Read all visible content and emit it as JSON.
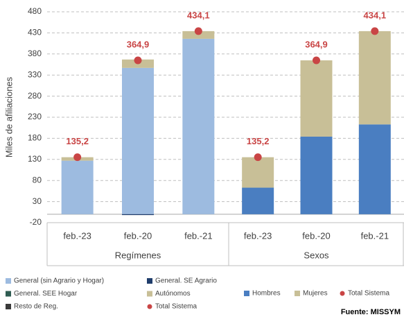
{
  "chart_data": [
    {
      "type": "bar",
      "stacked": true,
      "ylabel": "Miles de afiliaciones",
      "xlabel": "Regímenes",
      "ylim": [
        -20,
        480
      ],
      "yticks": [
        -20,
        30,
        80,
        130,
        180,
        230,
        280,
        330,
        380,
        430,
        480
      ],
      "grid": true,
      "categories": [
        "feb.-23",
        "feb.-20",
        "feb.-21"
      ],
      "series": [
        {
          "name": "General (sin Agrario y Hogar)",
          "color": "#9dbbe0",
          "values": [
            127,
            347,
            416
          ]
        },
        {
          "name": "General. SE Agrario",
          "color": "#1f3d6b",
          "values": [
            0,
            -2,
            0
          ]
        },
        {
          "name": "General. SEE Hogar",
          "color": "#2f5c52",
          "values": [
            0,
            0,
            0
          ]
        },
        {
          "name": "Autónomos",
          "color": "#c8bf97",
          "values": [
            8.2,
            19.9,
            18.1
          ]
        },
        {
          "name": "Resto de Reg.",
          "color": "#3a3a3a",
          "values": [
            0,
            0,
            0
          ]
        },
        {
          "name": "Total Sistema",
          "color": "#c94545",
          "kind": "point",
          "values": [
            135.2,
            364.9,
            434.1
          ],
          "value_labels": [
            "135,2",
            "364,9",
            "434,1"
          ]
        }
      ]
    },
    {
      "type": "bar",
      "stacked": true,
      "xlabel": "Sexos",
      "categories": [
        "feb.-23",
        "feb.-20",
        "feb.-21"
      ],
      "series": [
        {
          "name": "Hombres",
          "color": "#4a7ec1",
          "values": [
            63,
            184,
            213
          ]
        },
        {
          "name": "Mujeres",
          "color": "#c8bf97",
          "values": [
            72.2,
            180.9,
            221.1
          ]
        },
        {
          "name": "Total Sistema",
          "color": "#c94545",
          "kind": "point",
          "values": [
            135.2,
            364.9,
            434.1
          ],
          "value_labels": [
            "135,2",
            "364,9",
            "434,1"
          ]
        }
      ]
    }
  ],
  "source": "Fuente: MISSYM"
}
